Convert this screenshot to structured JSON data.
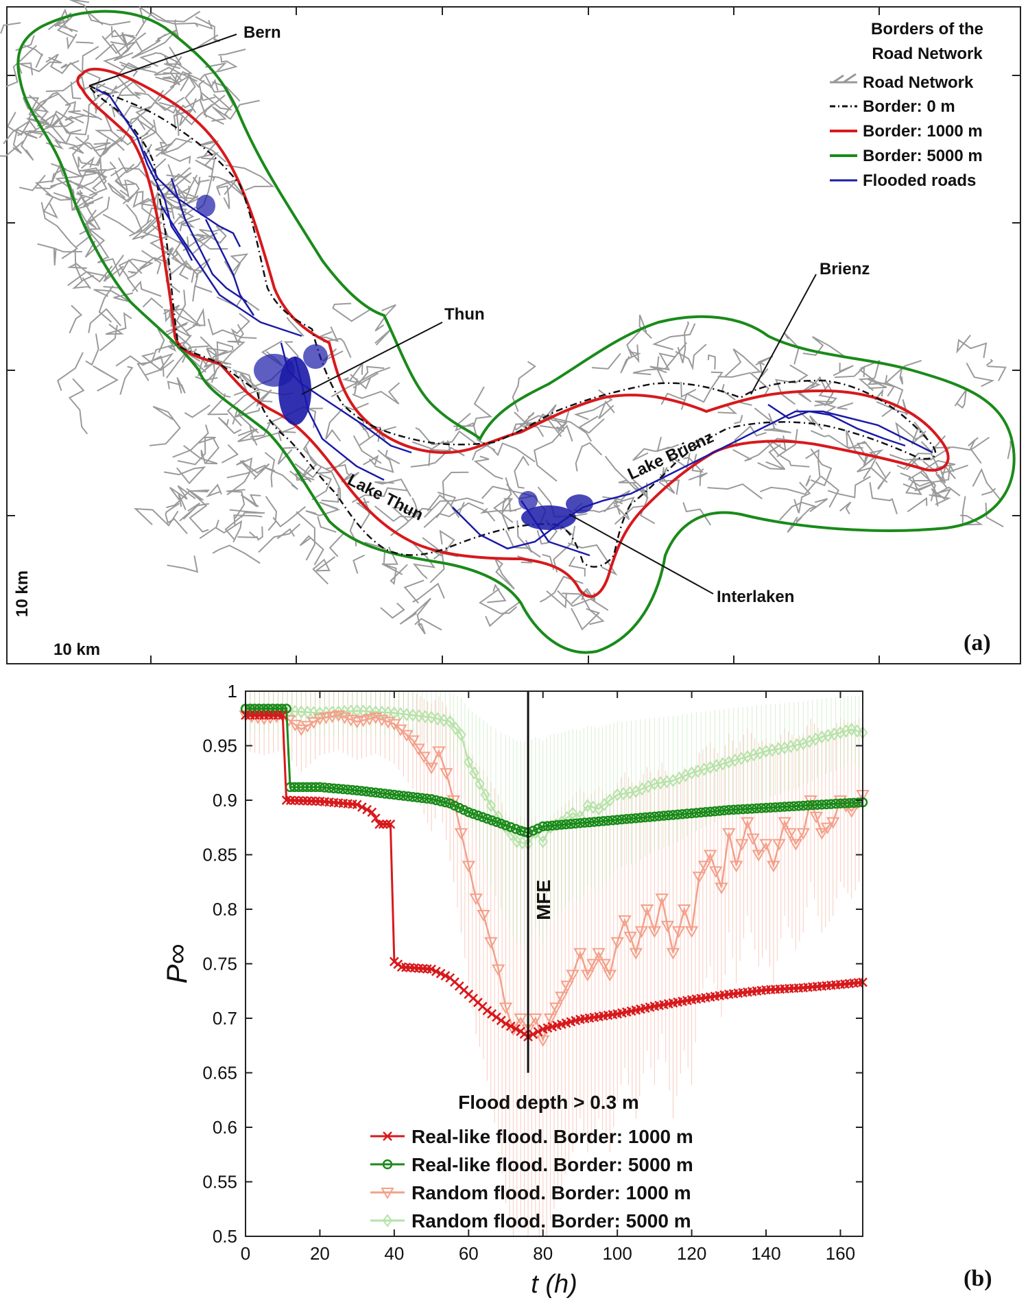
{
  "map": {
    "panel_label": "(a)",
    "legend": {
      "title_line1": "Borders of the",
      "title_line2": "Road Network",
      "items": [
        {
          "label": "Road Network",
          "color": "#999999"
        },
        {
          "label": "Border: 0 m",
          "color": "#000000"
        },
        {
          "label": "Border: 1000 m",
          "color": "#d7191c"
        },
        {
          "label": "Border: 5000 m",
          "color": "#1a8a1a"
        },
        {
          "label": "Flooded roads",
          "color": "#1a1aa8"
        }
      ]
    },
    "places": {
      "bern": "Bern",
      "thun": "Thun",
      "brienz": "Brienz",
      "interlaken": "Interlaken",
      "lake_thun": "Lake Thun",
      "lake_brienz": "Lake Brienz"
    },
    "scale_x": "10 km",
    "scale_y": "10 km"
  },
  "chart_data": {
    "type": "line",
    "panel_label": "(b)",
    "xlabel": "t (h)",
    "ylabel": "P∞",
    "xlim": [
      0,
      166
    ],
    "ylim": [
      0.5,
      1.0
    ],
    "xticks": [
      0,
      20,
      40,
      60,
      80,
      100,
      120,
      140,
      160
    ],
    "yticks": [
      0.5,
      0.55,
      0.6,
      0.65,
      0.7,
      0.75,
      0.8,
      0.85,
      0.9,
      0.95,
      1
    ],
    "grid": false,
    "annotation": {
      "label": "MFE",
      "x": 76,
      "y_from": 0.65,
      "y_to": 1.0
    },
    "legend_title": "Flood depth > 0.3 m",
    "legend_position": "bottom-center",
    "series": [
      {
        "name": "Real-like flood. Border: 1000 m",
        "color": "#d7191c",
        "marker": "x",
        "points": [
          [
            0,
            0.978
          ],
          [
            10,
            0.978
          ],
          [
            11,
            0.9
          ],
          [
            20,
            0.899
          ],
          [
            30,
            0.896
          ],
          [
            34,
            0.889
          ],
          [
            36,
            0.878
          ],
          [
            39,
            0.878
          ],
          [
            40,
            0.752
          ],
          [
            42,
            0.747
          ],
          [
            50,
            0.745
          ],
          [
            55,
            0.737
          ],
          [
            60,
            0.722
          ],
          [
            65,
            0.707
          ],
          [
            70,
            0.695
          ],
          [
            74,
            0.688
          ],
          [
            76,
            0.683
          ],
          [
            80,
            0.69
          ],
          [
            90,
            0.699
          ],
          [
            100,
            0.704
          ],
          [
            110,
            0.711
          ],
          [
            120,
            0.717
          ],
          [
            130,
            0.722
          ],
          [
            140,
            0.726
          ],
          [
            150,
            0.728
          ],
          [
            160,
            0.731
          ],
          [
            166,
            0.733
          ]
        ]
      },
      {
        "name": "Real-like flood. Border: 5000 m",
        "color": "#1a8a1a",
        "marker": "o",
        "points": [
          [
            0,
            0.984
          ],
          [
            11,
            0.984
          ],
          [
            12,
            0.912
          ],
          [
            20,
            0.912
          ],
          [
            30,
            0.909
          ],
          [
            40,
            0.905
          ],
          [
            50,
            0.901
          ],
          [
            55,
            0.897
          ],
          [
            60,
            0.889
          ],
          [
            65,
            0.883
          ],
          [
            70,
            0.877
          ],
          [
            74,
            0.872
          ],
          [
            76,
            0.87
          ],
          [
            80,
            0.876
          ],
          [
            90,
            0.879
          ],
          [
            100,
            0.882
          ],
          [
            110,
            0.885
          ],
          [
            120,
            0.888
          ],
          [
            130,
            0.891
          ],
          [
            140,
            0.893
          ],
          [
            150,
            0.895
          ],
          [
            160,
            0.897
          ],
          [
            166,
            0.898
          ]
        ]
      },
      {
        "name": "Random flood. Border: 1000 m",
        "color": "#f4a08a",
        "marker": "v",
        "points": [
          [
            0,
            0.978
          ],
          [
            5,
            0.975
          ],
          [
            10,
            0.978
          ],
          [
            15,
            0.965
          ],
          [
            20,
            0.975
          ],
          [
            25,
            0.978
          ],
          [
            30,
            0.972
          ],
          [
            35,
            0.976
          ],
          [
            40,
            0.97
          ],
          [
            45,
            0.955
          ],
          [
            48,
            0.94
          ],
          [
            50,
            0.93
          ],
          [
            52,
            0.945
          ],
          [
            54,
            0.925
          ],
          [
            56,
            0.9
          ],
          [
            58,
            0.87
          ],
          [
            60,
            0.84
          ],
          [
            62,
            0.81
          ],
          [
            64,
            0.795
          ],
          [
            66,
            0.77
          ],
          [
            68,
            0.745
          ],
          [
            70,
            0.71
          ],
          [
            72,
            0.69
          ],
          [
            74,
            0.7
          ],
          [
            76,
            0.69
          ],
          [
            78,
            0.7
          ],
          [
            80,
            0.68
          ],
          [
            82,
            0.7
          ],
          [
            85,
            0.72
          ],
          [
            88,
            0.74
          ],
          [
            90,
            0.76
          ],
          [
            92,
            0.74
          ],
          [
            95,
            0.76
          ],
          [
            98,
            0.74
          ],
          [
            100,
            0.77
          ],
          [
            102,
            0.79
          ],
          [
            105,
            0.76
          ],
          [
            108,
            0.8
          ],
          [
            110,
            0.78
          ],
          [
            112,
            0.81
          ],
          [
            115,
            0.76
          ],
          [
            118,
            0.8
          ],
          [
            120,
            0.78
          ],
          [
            122,
            0.83
          ],
          [
            125,
            0.85
          ],
          [
            128,
            0.82
          ],
          [
            130,
            0.87
          ],
          [
            132,
            0.84
          ],
          [
            135,
            0.88
          ],
          [
            138,
            0.85
          ],
          [
            140,
            0.86
          ],
          [
            142,
            0.84
          ],
          [
            145,
            0.88
          ],
          [
            148,
            0.86
          ],
          [
            150,
            0.87
          ],
          [
            152,
            0.9
          ],
          [
            155,
            0.87
          ],
          [
            158,
            0.88
          ],
          [
            160,
            0.9
          ],
          [
            163,
            0.89
          ],
          [
            166,
            0.905
          ]
        ]
      },
      {
        "name": "Random flood. Border: 5000 m",
        "color": "#b5e3a8",
        "marker": "d",
        "points": [
          [
            0,
            0.983
          ],
          [
            10,
            0.982
          ],
          [
            20,
            0.98
          ],
          [
            30,
            0.982
          ],
          [
            40,
            0.98
          ],
          [
            45,
            0.978
          ],
          [
            50,
            0.976
          ],
          [
            55,
            0.972
          ],
          [
            58,
            0.96
          ],
          [
            60,
            0.935
          ],
          [
            63,
            0.915
          ],
          [
            66,
            0.895
          ],
          [
            70,
            0.875
          ],
          [
            73,
            0.862
          ],
          [
            76,
            0.86
          ],
          [
            78,
            0.87
          ],
          [
            80,
            0.862
          ],
          [
            82,
            0.875
          ],
          [
            85,
            0.88
          ],
          [
            88,
            0.888
          ],
          [
            90,
            0.885
          ],
          [
            92,
            0.895
          ],
          [
            95,
            0.892
          ],
          [
            98,
            0.9
          ],
          [
            100,
            0.905
          ],
          [
            105,
            0.908
          ],
          [
            110,
            0.915
          ],
          [
            115,
            0.918
          ],
          [
            120,
            0.925
          ],
          [
            125,
            0.93
          ],
          [
            130,
            0.935
          ],
          [
            135,
            0.94
          ],
          [
            140,
            0.945
          ],
          [
            145,
            0.948
          ],
          [
            150,
            0.952
          ],
          [
            155,
            0.958
          ],
          [
            160,
            0.962
          ],
          [
            163,
            0.965
          ],
          [
            166,
            0.962
          ]
        ]
      }
    ]
  }
}
